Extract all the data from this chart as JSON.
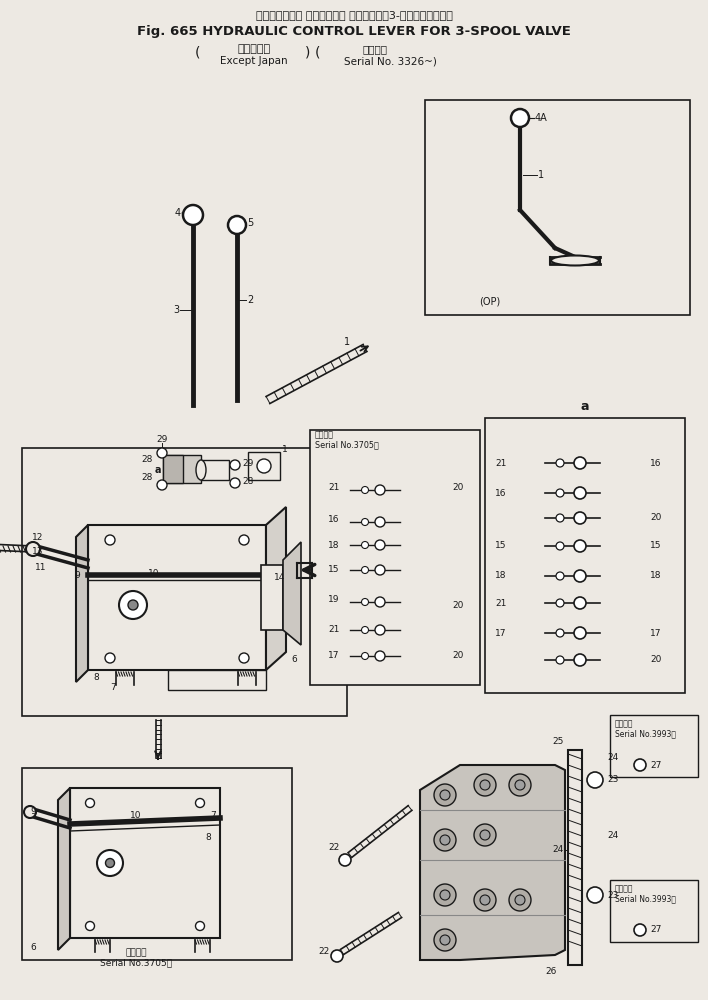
{
  "title_jp": "ハイドロリック コントロール レバー　　㌖3-スプールバルブ用",
  "title_en": "Fig. 665 HYDRAULIC CONTROL LEVER FOR 3-SPOOL VALVE",
  "sub_left_jp": "海　外　向",
  "sub_left_en": "Except Japan",
  "sub_right_jp": "適用号機",
  "sub_right_en": "Serial No. 3326～",
  "serial_3705": "適用号機\nSerial No.3705～",
  "serial_3993": "適用号機\nSerial No.3993～",
  "op_label": "(OP)",
  "bg_color": "#ede9e3",
  "line_color": "#1a1a1a"
}
